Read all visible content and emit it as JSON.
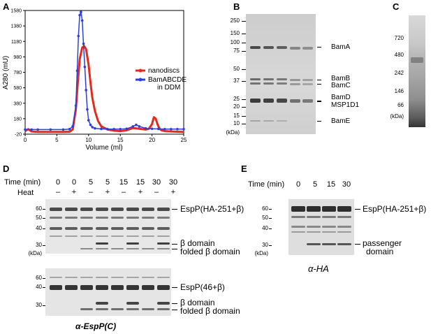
{
  "panels": {
    "A": "A",
    "B": "B",
    "C": "C",
    "D": "D",
    "E": "E"
  },
  "chart_data": {
    "type": "line",
    "xlabel": "Volume (ml)",
    "ylabel": "A280 (mU)",
    "xlim": [
      0,
      25
    ],
    "ylim": [
      0,
      1580
    ],
    "x_ticks": [
      "0",
      "5",
      "10",
      "15",
      "20",
      "25"
    ],
    "y_ticks": [
      "1580",
      "1380",
      "1180",
      "980",
      "780",
      "580",
      "380",
      "180",
      "-20"
    ],
    "legend_position": "right",
    "series": [
      {
        "name": "nanodiscs",
        "color": "#e32a1c",
        "x": [
          0,
          0.5,
          1,
          2,
          4,
          6,
          7,
          7.5,
          8,
          8.3,
          8.6,
          9,
          9.3,
          9.6,
          10,
          10.3,
          10.6,
          11,
          11.5,
          12,
          13,
          14,
          15,
          16,
          17,
          18,
          19,
          19.5,
          20,
          20.3,
          20.6,
          20.9,
          21.2,
          21.5,
          22,
          23,
          24,
          25
        ],
        "y": [
          20,
          45,
          15,
          10,
          10,
          10,
          12,
          40,
          300,
          650,
          950,
          1100,
          1120,
          1080,
          880,
          650,
          450,
          280,
          150,
          80,
          40,
          25,
          20,
          30,
          60,
          50,
          40,
          50,
          110,
          200,
          180,
          100,
          50,
          30,
          20,
          15,
          12,
          10
        ]
      },
      {
        "name": "BamABCDE in DDM",
        "color": "#2e3fd6",
        "x": [
          0,
          1,
          2,
          4,
          6,
          7,
          7.5,
          8,
          8.2,
          8.4,
          8.6,
          8.8,
          9,
          9.2,
          9.4,
          9.6,
          9.8,
          10,
          10.3,
          10.6,
          11,
          12,
          13,
          14,
          15,
          16,
          17,
          17.5,
          18,
          19,
          20,
          21,
          22,
          23,
          24,
          25
        ],
        "y": [
          40,
          40,
          40,
          40,
          40,
          45,
          80,
          350,
          800,
          1250,
          1520,
          1560,
          1450,
          1150,
          850,
          550,
          300,
          160,
          100,
          70,
          55,
          48,
          45,
          45,
          45,
          50,
          80,
          100,
          80,
          55,
          50,
          48,
          45,
          45,
          45,
          45
        ]
      }
    ]
  },
  "gelB": {
    "markers": [
      "250",
      "150",
      "100",
      "75",
      "50",
      "37",
      "25",
      "20",
      "15",
      "10"
    ],
    "unit": "(kDa)",
    "labels": [
      "BamA",
      "BamB",
      "BamC",
      "BamD",
      "MSP1D1",
      "BamE"
    ]
  },
  "gelC": {
    "markers": [
      "720",
      "480",
      "242",
      "146",
      "66"
    ],
    "unit": "(kDa)"
  },
  "gelD": {
    "time_label": "Time (min)",
    "heat_label": "Heat",
    "times": [
      "0",
      "0",
      "5",
      "5",
      "15",
      "15",
      "30",
      "30"
    ],
    "heat": [
      "–",
      "+",
      "–",
      "+",
      "–",
      "+",
      "–",
      "+"
    ],
    "top_markers": [
      "60",
      "50",
      "40",
      "30"
    ],
    "top_unit": "(kDa)",
    "top_labels": [
      "EspP(HA-251+β)",
      "β domain",
      "folded β domain"
    ],
    "bottom_markers": [
      "60",
      "40",
      "30"
    ],
    "bottom_labels": [
      "EspP(46+β)",
      "β domain",
      "folded β domain"
    ],
    "antibody": "α-EspP(C)"
  },
  "gelE": {
    "time_label": "Time (min)",
    "times": [
      "0",
      "5",
      "15",
      "30"
    ],
    "markers": [
      "60",
      "50",
      "40",
      "30"
    ],
    "unit": "(kDa)",
    "labels": [
      "EspP(HA-251+β)",
      "passenger",
      "domain"
    ],
    "antibody": "α-HA"
  }
}
